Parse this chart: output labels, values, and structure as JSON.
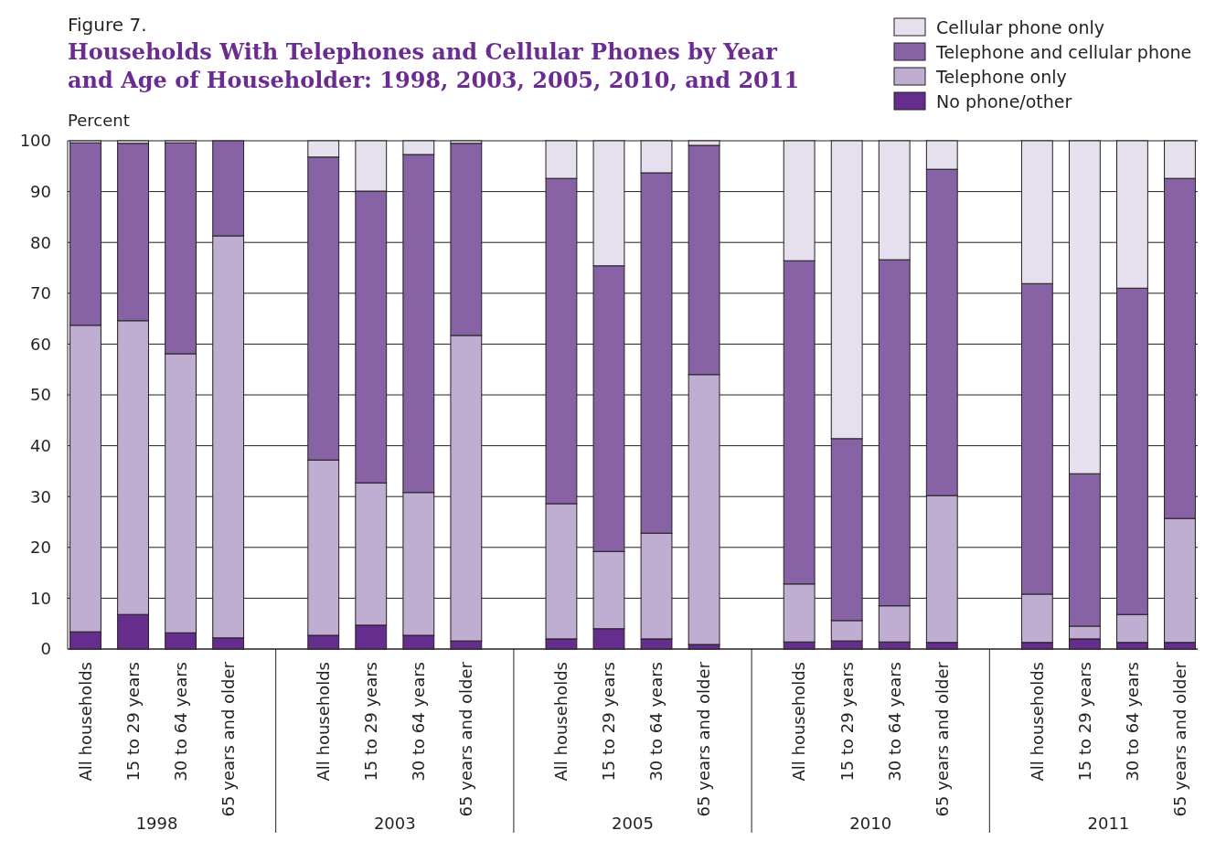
{
  "chart_data": {
    "type": "bar",
    "stacked": true,
    "title": "Households With Telephones and Cellular Phones by Year and Age of Householder: 1998, 2003, 2005, 2010, and 2011",
    "ylabel": "Percent",
    "annotations": [
      "Figure 7.",
      "1998",
      "2003",
      "2005",
      "2010",
      "2011"
    ],
    "categories": [
      "All households",
      "15 to 29 years",
      "30 to 64 years",
      "65 years and older",
      null,
      "All households",
      "15 to 29 years",
      "30 to 64 years",
      "65 years and older",
      null,
      "All households",
      "15 to 29 years",
      "30 to 64 years",
      "65 years and older",
      null,
      "All households",
      "15 to 29 years",
      "30 to 64 years",
      "65 years and older",
      null,
      "All households",
      "15 to 29 years",
      "30 to 64 years",
      "65 years and older"
    ],
    "series": [
      {
        "name": "No phone/other",
        "color": "#652d8c",
        "values": [
          3.4,
          6.8,
          3.2,
          2.2,
          null,
          2.7,
          4.7,
          2.7,
          1.6,
          null,
          2.0,
          4.0,
          2.0,
          0.9,
          null,
          1.4,
          1.6,
          1.4,
          1.3,
          null,
          1.3,
          2.0,
          1.3,
          1.3
        ]
      },
      {
        "name": "Telephone only",
        "color": "#bfaed2",
        "values": [
          60.3,
          57.8,
          54.9,
          79.1,
          null,
          34.5,
          28.0,
          28.1,
          60.1,
          null,
          26.6,
          15.2,
          20.8,
          53.1,
          null,
          11.4,
          4.0,
          7.1,
          28.9,
          null,
          9.5,
          2.5,
          5.5,
          24.4
        ]
      },
      {
        "name": "Telephone and cellular phone",
        "color": "#8762a5",
        "values": [
          35.9,
          34.9,
          41.5,
          18.7,
          null,
          59.6,
          57.4,
          66.5,
          37.8,
          null,
          64.0,
          56.2,
          70.9,
          45.1,
          null,
          63.6,
          35.8,
          68.1,
          64.2,
          null,
          61.1,
          30.0,
          64.2,
          66.9
        ]
      },
      {
        "name": "Cellular phone only",
        "color": "#e6e0ee",
        "values": [
          0.4,
          0.5,
          0.4,
          0,
          null,
          3.2,
          9.9,
          2.7,
          0.5,
          null,
          7.4,
          24.6,
          6.3,
          0.9,
          null,
          23.6,
          58.6,
          23.4,
          5.6,
          null,
          28.1,
          65.5,
          29.0,
          7.4
        ]
      }
    ],
    "ylim": [
      0,
      100
    ],
    "yticks": [
      0,
      10,
      20,
      30,
      40,
      50,
      60,
      70,
      80,
      90,
      100
    ],
    "grid": "y",
    "legend": "top right"
  }
}
